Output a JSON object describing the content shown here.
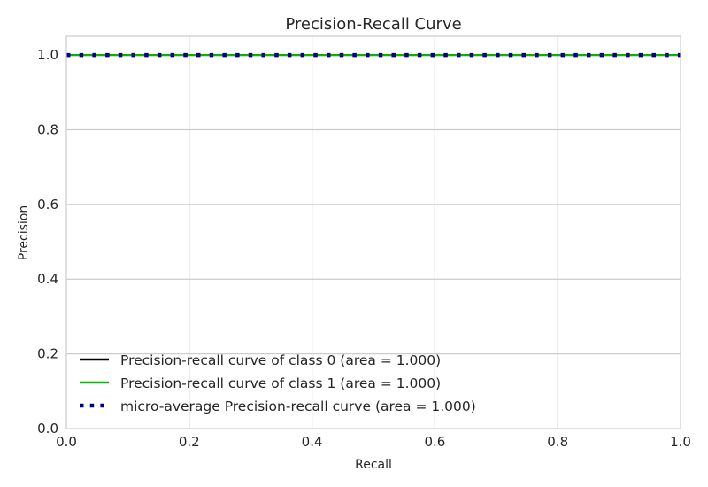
{
  "chart_data": {
    "type": "line",
    "title": "Precision-Recall Curve",
    "xlabel": "Recall",
    "ylabel": "Precision",
    "xlim": [
      0.0,
      1.0
    ],
    "ylim": [
      0.0,
      1.05
    ],
    "xticks": [
      0.0,
      0.2,
      0.4,
      0.6,
      0.8,
      1.0
    ],
    "yticks": [
      0.0,
      0.2,
      0.4,
      0.6,
      0.8,
      1.0
    ],
    "xtick_labels": [
      "0.0",
      "0.2",
      "0.4",
      "0.6",
      "0.8",
      "1.0"
    ],
    "ytick_labels": [
      "0.0",
      "0.2",
      "0.4",
      "0.6",
      "0.8",
      "1.0"
    ],
    "grid": true,
    "legend_position": "lower-left",
    "series": [
      {
        "name": "Precision-recall curve of class 0 (area = 1.000)",
        "color": "#000000",
        "style": "solid",
        "x": [
          0.0,
          1.0
        ],
        "y": [
          1.0,
          1.0
        ]
      },
      {
        "name": "Precision-recall curve of class 1 (area = 1.000)",
        "color": "#00bb00",
        "style": "solid",
        "x": [
          0.0,
          1.0
        ],
        "y": [
          1.0,
          1.0
        ]
      },
      {
        "name": "micro-average Precision-recall curve (area = 1.000)",
        "color": "#000080",
        "style": "dotted",
        "x": [
          0.0,
          1.0
        ],
        "y": [
          1.0,
          1.0
        ]
      }
    ]
  }
}
